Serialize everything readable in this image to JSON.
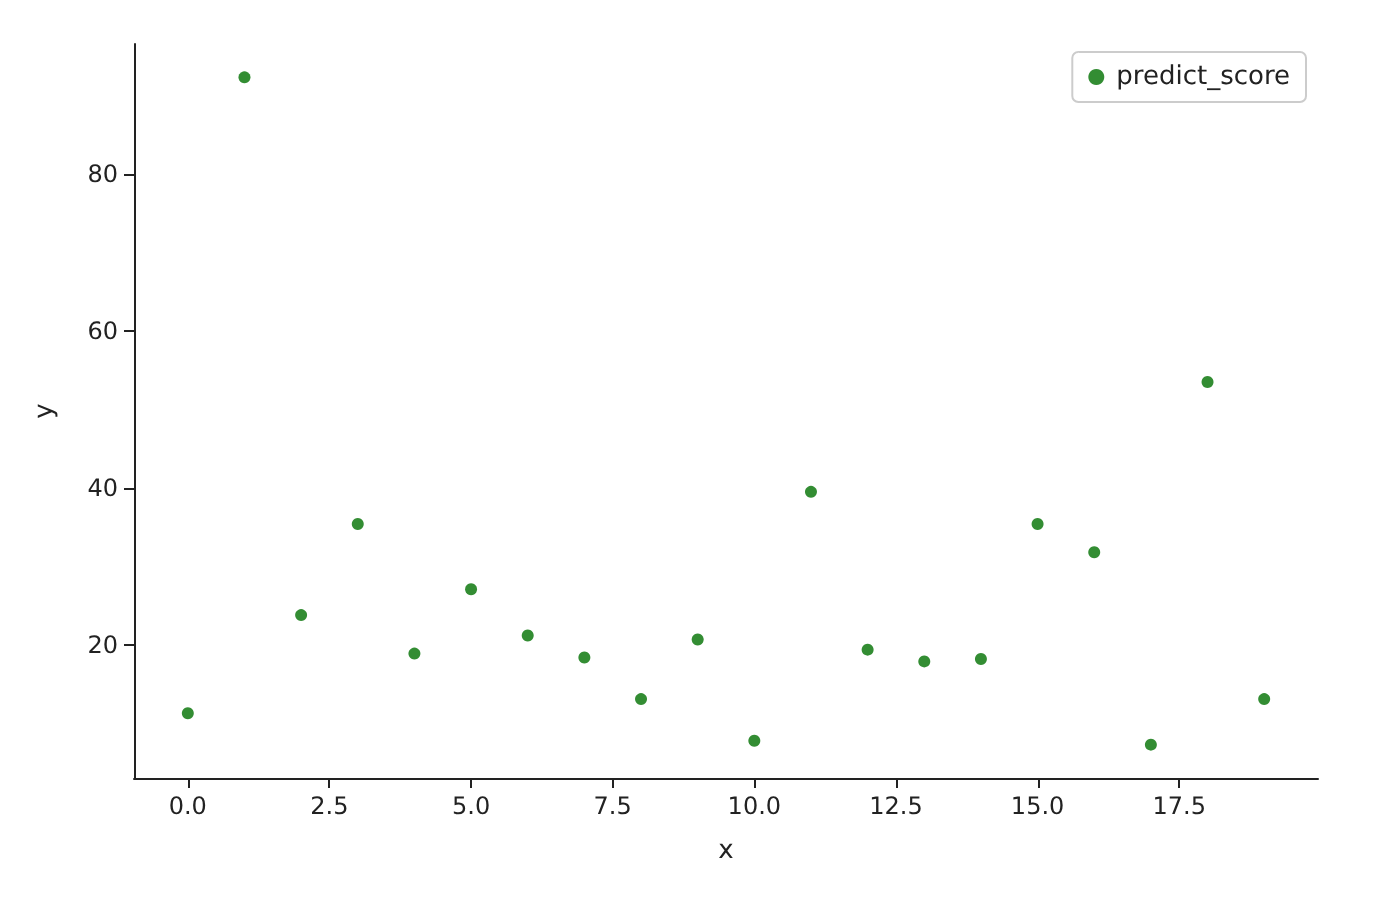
{
  "chart_data": {
    "type": "scatter",
    "xlabel": "x",
    "ylabel": "y",
    "x": [
      0,
      1,
      2,
      3,
      4,
      5,
      6,
      7,
      8,
      9,
      10,
      11,
      12,
      13,
      14,
      15,
      16,
      17,
      18,
      19
    ],
    "series": [
      {
        "name": "predict_score",
        "color": "#007000",
        "values": [
          11.3,
          92.3,
          23.8,
          35.4,
          18.9,
          27.1,
          21.2,
          18.4,
          13.1,
          20.7,
          7.8,
          39.5,
          19.4,
          17.9,
          18.2,
          35.4,
          31.8,
          7.3,
          53.5,
          13.1
        ]
      }
    ],
    "xlim": [
      -0.95,
      19.95
    ],
    "xticks": [
      {
        "value": 0,
        "label": "0.0"
      },
      {
        "value": 2.5,
        "label": "2.5"
      },
      {
        "value": 5,
        "label": "5.0"
      },
      {
        "value": 7.5,
        "label": "7.5"
      },
      {
        "value": 10,
        "label": "10.0"
      },
      {
        "value": 12.5,
        "label": "12.5"
      },
      {
        "value": 15,
        "label": "15.0"
      },
      {
        "value": 17.5,
        "label": "17.5"
      }
    ],
    "ylim": [
      3.05,
      96.55
    ],
    "yticks": [
      20,
      40,
      60,
      80
    ],
    "grid": false,
    "legend": "top right",
    "marker": "circle"
  }
}
